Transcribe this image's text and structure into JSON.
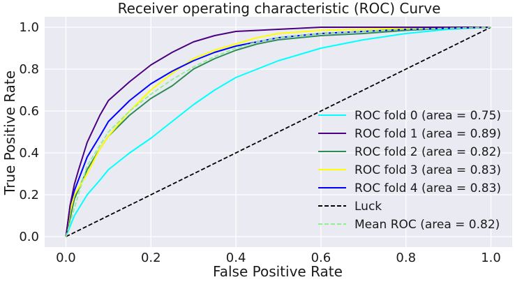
{
  "chart_data": {
    "type": "line",
    "title": "Receiver operating characteristic (ROC) Curve",
    "xlabel": "False Positive Rate",
    "ylabel": "True Positive Rate",
    "xlim": [
      -0.05,
      1.05
    ],
    "ylim": [
      -0.05,
      1.05
    ],
    "xticks": [
      "0.0",
      "0.2",
      "0.4",
      "0.6",
      "0.8",
      "1.0"
    ],
    "yticks": [
      "0.0",
      "0.2",
      "0.4",
      "0.6",
      "0.8",
      "1.0"
    ],
    "grid": true,
    "legend_position": "lower-right",
    "series": [
      {
        "name": "ROC fold 0 (area = 0.75)",
        "color": "#00ffff",
        "style": "solid",
        "x": [
          0.0,
          0.02,
          0.05,
          0.08,
          0.1,
          0.15,
          0.2,
          0.25,
          0.3,
          0.35,
          0.4,
          0.45,
          0.5,
          0.55,
          0.6,
          0.7,
          0.8,
          0.9,
          1.0
        ],
        "y": [
          0.0,
          0.1,
          0.2,
          0.27,
          0.32,
          0.4,
          0.47,
          0.55,
          0.63,
          0.7,
          0.76,
          0.8,
          0.84,
          0.87,
          0.9,
          0.94,
          0.97,
          0.99,
          1.0
        ]
      },
      {
        "name": "ROC fold 1 (area = 0.89)",
        "color": "#4b0082",
        "style": "solid",
        "x": [
          0.0,
          0.01,
          0.02,
          0.03,
          0.05,
          0.08,
          0.1,
          0.15,
          0.2,
          0.25,
          0.3,
          0.35,
          0.4,
          0.5,
          0.6,
          0.7,
          0.8,
          0.9,
          1.0
        ],
        "y": [
          0.0,
          0.15,
          0.25,
          0.32,
          0.45,
          0.58,
          0.65,
          0.74,
          0.82,
          0.88,
          0.93,
          0.96,
          0.98,
          0.99,
          1.0,
          1.0,
          1.0,
          1.0,
          1.0
        ]
      },
      {
        "name": "ROC fold 2 (area = 0.82)",
        "color": "#2e8b57",
        "style": "solid",
        "x": [
          0.0,
          0.02,
          0.05,
          0.08,
          0.1,
          0.15,
          0.2,
          0.25,
          0.3,
          0.35,
          0.4,
          0.45,
          0.5,
          0.6,
          0.7,
          0.8,
          0.9,
          1.0
        ],
        "y": [
          0.0,
          0.18,
          0.32,
          0.42,
          0.48,
          0.58,
          0.66,
          0.72,
          0.8,
          0.85,
          0.89,
          0.92,
          0.94,
          0.96,
          0.97,
          0.985,
          0.995,
          1.0
        ]
      },
      {
        "name": "ROC fold 3 (area = 0.83)",
        "color": "#ffff00",
        "style": "solid",
        "x": [
          0.0,
          0.01,
          0.02,
          0.05,
          0.08,
          0.1,
          0.15,
          0.2,
          0.25,
          0.3,
          0.35,
          0.4,
          0.45,
          0.5,
          0.6,
          0.7,
          0.8,
          0.9,
          1.0
        ],
        "y": [
          0.0,
          0.12,
          0.2,
          0.3,
          0.42,
          0.48,
          0.6,
          0.7,
          0.78,
          0.85,
          0.89,
          0.92,
          0.95,
          0.97,
          0.985,
          0.99,
          0.995,
          0.998,
          1.0
        ]
      },
      {
        "name": "ROC fold 4 (area = 0.83)",
        "color": "#0000ff",
        "style": "solid",
        "x": [
          0.0,
          0.01,
          0.02,
          0.05,
          0.08,
          0.1,
          0.15,
          0.2,
          0.25,
          0.3,
          0.35,
          0.4,
          0.45,
          0.5,
          0.6,
          0.7,
          0.8,
          0.9,
          1.0
        ],
        "y": [
          0.0,
          0.15,
          0.22,
          0.38,
          0.48,
          0.55,
          0.65,
          0.73,
          0.79,
          0.84,
          0.88,
          0.91,
          0.93,
          0.95,
          0.97,
          0.98,
          0.99,
          0.995,
          1.0
        ]
      },
      {
        "name": "Luck",
        "color": "#000000",
        "style": "dashed",
        "x": [
          0.0,
          1.0
        ],
        "y": [
          0.0,
          1.0
        ]
      },
      {
        "name": "Mean ROC (area = 0.82)",
        "color": "#90ee90",
        "style": "dashed",
        "x": [
          0.0,
          0.05,
          0.1,
          0.15,
          0.2,
          0.25,
          0.3,
          0.35,
          0.4,
          0.45,
          0.5,
          0.6,
          0.7,
          0.8,
          0.9,
          1.0
        ],
        "y": [
          0.0,
          0.34,
          0.5,
          0.6,
          0.68,
          0.75,
          0.81,
          0.86,
          0.9,
          0.93,
          0.95,
          0.97,
          0.98,
          0.99,
          0.995,
          1.0
        ]
      }
    ]
  }
}
